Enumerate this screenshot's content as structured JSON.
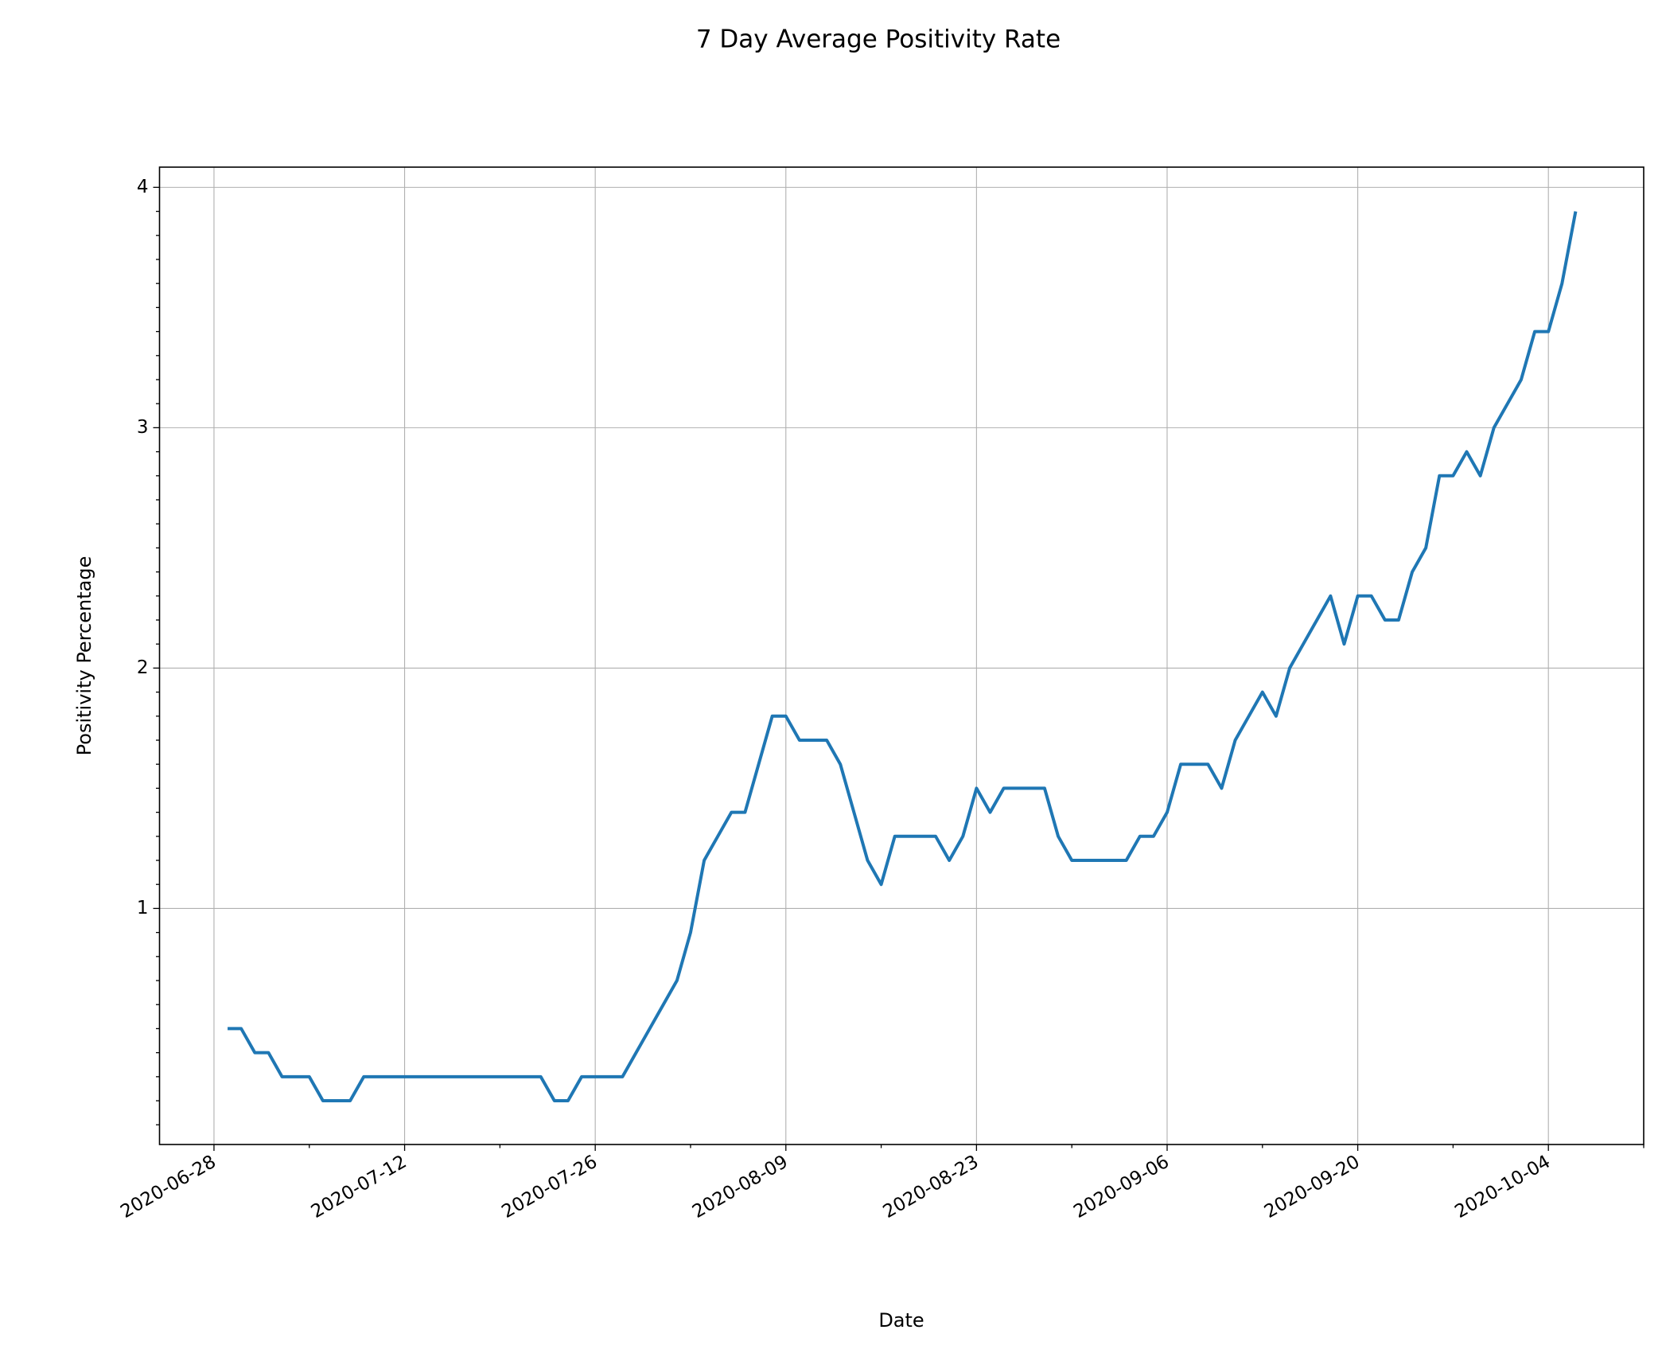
{
  "chart_data": {
    "type": "line",
    "title": "7 Day Average Positivity Rate",
    "x_label": "Date",
    "y_label": "Positivity Percentage",
    "color": "#1f77b4",
    "grid": true,
    "x": [
      "2020-06-29",
      "2020-06-30",
      "2020-07-01",
      "2020-07-02",
      "2020-07-03",
      "2020-07-04",
      "2020-07-05",
      "2020-07-06",
      "2020-07-07",
      "2020-07-08",
      "2020-07-09",
      "2020-07-10",
      "2020-07-11",
      "2020-07-12",
      "2020-07-13",
      "2020-07-14",
      "2020-07-15",
      "2020-07-16",
      "2020-07-17",
      "2020-07-18",
      "2020-07-19",
      "2020-07-20",
      "2020-07-21",
      "2020-07-22",
      "2020-07-23",
      "2020-07-24",
      "2020-07-25",
      "2020-07-26",
      "2020-07-27",
      "2020-07-28",
      "2020-07-29",
      "2020-07-30",
      "2020-07-31",
      "2020-08-01",
      "2020-08-02",
      "2020-08-03",
      "2020-08-04",
      "2020-08-05",
      "2020-08-06",
      "2020-08-07",
      "2020-08-08",
      "2020-08-09",
      "2020-08-10",
      "2020-08-11",
      "2020-08-12",
      "2020-08-13",
      "2020-08-14",
      "2020-08-15",
      "2020-08-16",
      "2020-08-17",
      "2020-08-18",
      "2020-08-19",
      "2020-08-20",
      "2020-08-21",
      "2020-08-22",
      "2020-08-23",
      "2020-08-24",
      "2020-08-25",
      "2020-08-26",
      "2020-08-27",
      "2020-08-28",
      "2020-08-29",
      "2020-08-30",
      "2020-08-31",
      "2020-09-01",
      "2020-09-02",
      "2020-09-03",
      "2020-09-04",
      "2020-09-05",
      "2020-09-06",
      "2020-09-07",
      "2020-09-08",
      "2020-09-09",
      "2020-09-10",
      "2020-09-11",
      "2020-09-12",
      "2020-09-13",
      "2020-09-14",
      "2020-09-15",
      "2020-09-16",
      "2020-09-17",
      "2020-09-18",
      "2020-09-19",
      "2020-09-20",
      "2020-09-21",
      "2020-09-22",
      "2020-09-23",
      "2020-09-24",
      "2020-09-25",
      "2020-09-26",
      "2020-09-27",
      "2020-09-28",
      "2020-09-29",
      "2020-09-30",
      "2020-10-01",
      "2020-10-02",
      "2020-10-03",
      "2020-10-04",
      "2020-10-05",
      "2020-10-06"
    ],
    "values": [
      0.5,
      0.5,
      0.4,
      0.4,
      0.3,
      0.3,
      0.3,
      0.2,
      0.2,
      0.2,
      0.3,
      0.3,
      0.3,
      0.3,
      0.3,
      0.3,
      0.3,
      0.3,
      0.3,
      0.3,
      0.3,
      0.3,
      0.3,
      0.3,
      0.2,
      0.2,
      0.3,
      0.3,
      0.3,
      0.3,
      0.4,
      0.5,
      0.6,
      0.7,
      0.9,
      1.2,
      1.3,
      1.4,
      1.4,
      1.6,
      1.8,
      1.8,
      1.7,
      1.7,
      1.7,
      1.6,
      1.4,
      1.2,
      1.1,
      1.3,
      1.3,
      1.3,
      1.3,
      1.2,
      1.3,
      1.5,
      1.4,
      1.5,
      1.5,
      1.5,
      1.5,
      1.3,
      1.2,
      1.2,
      1.2,
      1.2,
      1.2,
      1.3,
      1.3,
      1.4,
      1.6,
      1.6,
      1.6,
      1.5,
      1.7,
      1.8,
      1.9,
      1.8,
      2.0,
      2.1,
      2.2,
      2.3,
      2.1,
      2.3,
      2.3,
      2.2,
      2.2,
      2.4,
      2.5,
      2.8,
      2.8,
      2.9,
      2.8,
      3.0,
      3.1,
      3.2,
      3.4,
      3.4,
      3.6,
      3.9
    ],
    "xlim": [
      "2020-06-24",
      "2020-10-11"
    ],
    "xticks": [
      "2020-06-28",
      "2020-07-12",
      "2020-07-26",
      "2020-08-09",
      "2020-08-23",
      "2020-09-06",
      "2020-09-20",
      "2020-10-04"
    ],
    "xminorticks": [
      "2020-07-05",
      "2020-07-19",
      "2020-08-02",
      "2020-08-16",
      "2020-08-30",
      "2020-09-13",
      "2020-09-27",
      "2020-10-11"
    ],
    "ylim": [
      0.018,
      4.084
    ],
    "yticks": [
      1,
      2,
      3,
      4
    ],
    "yminorticks": [
      0.1,
      0.2,
      0.3,
      0.4,
      0.5,
      0.6,
      0.7,
      0.8,
      0.9,
      1.1,
      1.2,
      1.3,
      1.4,
      1.5,
      1.6,
      1.7,
      1.8,
      1.9,
      2.1,
      2.2,
      2.3,
      2.4,
      2.5,
      2.6,
      2.7,
      2.8,
      2.9,
      3.1,
      3.2,
      3.3,
      3.4,
      3.5,
      3.6,
      3.7,
      3.8,
      3.9
    ]
  }
}
